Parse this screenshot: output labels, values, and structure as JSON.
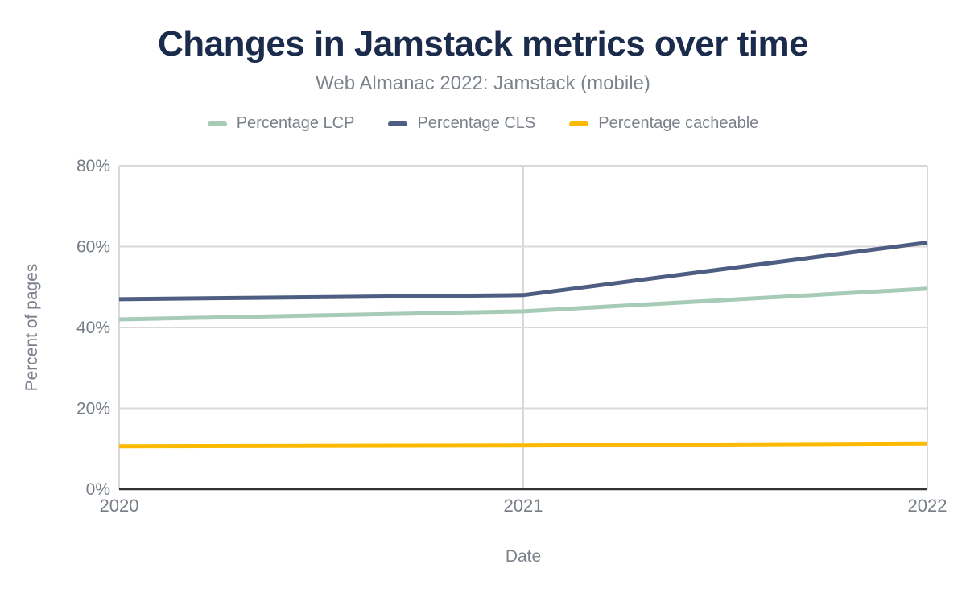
{
  "header": {
    "title": "Changes in Jamstack metrics over time",
    "subtitle": "Web Almanac 2022: Jamstack (mobile)"
  },
  "chart_data": {
    "type": "line",
    "title": "Changes in Jamstack metrics over time",
    "subtitle": "Web Almanac 2022: Jamstack (mobile)",
    "xlabel": "Date",
    "ylabel": "Percent of pages",
    "categories": [
      "2020",
      "2021",
      "2022"
    ],
    "series": [
      {
        "name": "Percentage LCP",
        "color": "#a6cbb6",
        "values": [
          42.0,
          44.0,
          49.6
        ]
      },
      {
        "name": "Percentage CLS",
        "color": "#4d5e82",
        "values": [
          47.0,
          48.0,
          61.0
        ]
      },
      {
        "name": "Percentage cacheable",
        "color": "#fcb902",
        "values": [
          10.6,
          10.8,
          11.3
        ]
      }
    ],
    "ylim": [
      0,
      80
    ],
    "yticks": [
      0,
      20,
      40,
      60,
      80
    ],
    "ytick_labels": [
      "0%",
      "20%",
      "40%",
      "60%",
      "80%"
    ],
    "grid": true,
    "legend_position": "top",
    "styles": {
      "grid_color": "#d9d9d9",
      "axis_color": "#333333",
      "tick_text_color": "#767d86",
      "axis_title_color": "#7b828c",
      "line_width": 5
    }
  }
}
